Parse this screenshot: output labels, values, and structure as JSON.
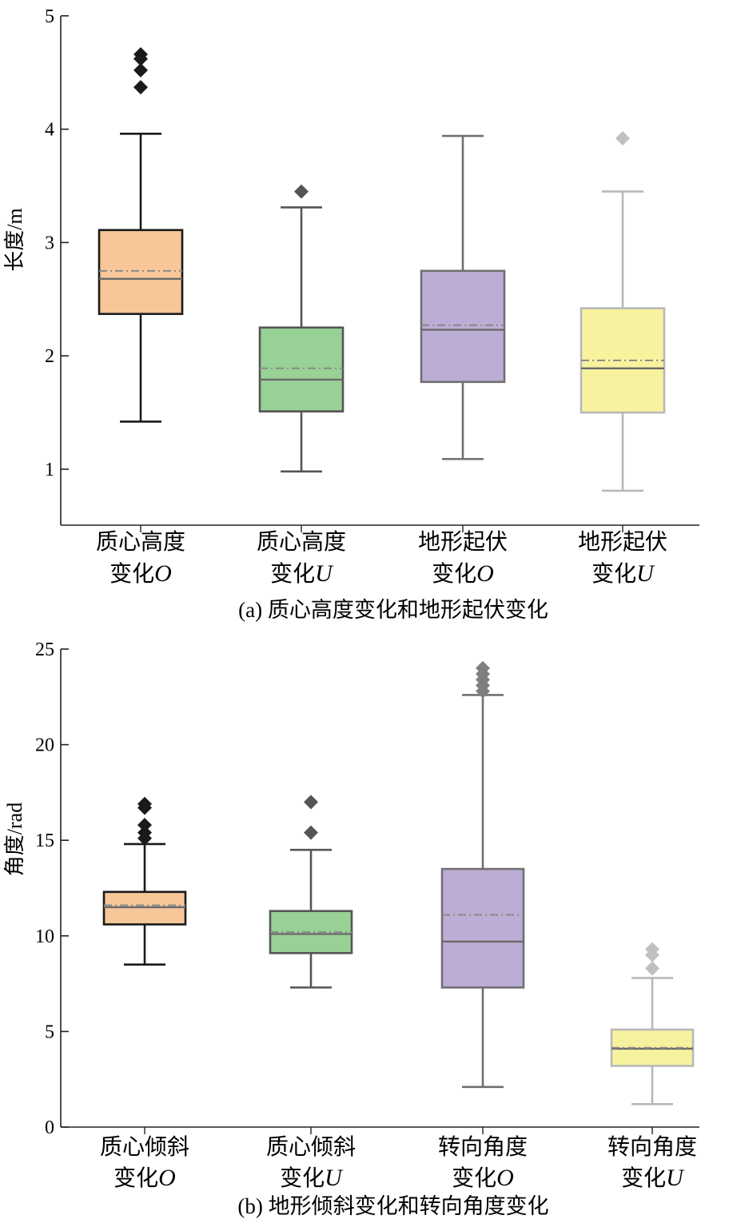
{
  "chart_data": [
    {
      "type": "boxplot",
      "caption_letter": "(a)",
      "caption": "质心高度变化和地形起伏变化",
      "ylabel": "长度",
      "yunit": "/m",
      "ylim": [
        0.45,
        5
      ],
      "yticks": [
        1,
        2,
        3,
        4,
        5
      ],
      "categories": [
        {
          "line1": "质心高度",
          "line2": "变化",
          "var": "O"
        },
        {
          "line1": "质心高度",
          "line2": "变化",
          "var": "U"
        },
        {
          "line1": "地形起伏",
          "line2": "变化",
          "var": "O"
        },
        {
          "line1": "地形起伏",
          "line2": "变化",
          "var": "U"
        }
      ],
      "boxes": [
        {
          "whisker_low": 1.42,
          "q1": 2.37,
          "median": 2.68,
          "mean": 2.75,
          "q3": 3.11,
          "whisker_high": 3.96,
          "outliers": [
            4.37,
            4.52,
            4.62,
            4.66
          ],
          "fill": "#f7c699",
          "stroke": "#1a1a1a"
        },
        {
          "whisker_low": 0.98,
          "q1": 1.51,
          "median": 1.79,
          "mean": 1.89,
          "q3": 2.25,
          "whisker_high": 3.31,
          "outliers": [
            3.45
          ],
          "fill": "#98d196",
          "stroke": "#555555"
        },
        {
          "whisker_low": 1.09,
          "q1": 1.77,
          "median": 2.23,
          "mean": 2.27,
          "q3": 2.75,
          "whisker_high": 3.94,
          "outliers": [],
          "fill": "#bcadd6",
          "stroke": "#707070"
        },
        {
          "whisker_low": 0.81,
          "q1": 1.5,
          "median": 1.89,
          "mean": 1.96,
          "q3": 2.42,
          "whisker_high": 3.45,
          "outliers": [
            3.92
          ],
          "fill": "#f7f29e",
          "stroke": "#b8b8b8"
        }
      ],
      "grid": false,
      "legend": "none"
    },
    {
      "type": "boxplot",
      "caption_letter": "(b)",
      "caption": "地形倾斜变化和转向角度变化",
      "ylabel": "角度",
      "yunit": "/rad",
      "ylim": [
        0,
        25
      ],
      "yticks": [
        0,
        5,
        10,
        15,
        20,
        25
      ],
      "categories": [
        {
          "line1": "质心倾斜",
          "line2": "变化",
          "var": "O"
        },
        {
          "line1": "质心倾斜",
          "line2": "变化",
          "var": "U"
        },
        {
          "line1": "转向角度",
          "line2": "变化",
          "var": "O"
        },
        {
          "line1": "转向角度",
          "line2": "变化",
          "var": "U"
        }
      ],
      "boxes": [
        {
          "whisker_low": 8.5,
          "q1": 10.6,
          "median": 11.5,
          "mean": 11.6,
          "q3": 12.3,
          "whisker_high": 14.8,
          "outliers": [
            15.1,
            15.4,
            15.8,
            16.7,
            16.9
          ],
          "fill": "#f7c699",
          "stroke": "#1a1a1a"
        },
        {
          "whisker_low": 7.3,
          "q1": 9.1,
          "median": 10.1,
          "mean": 10.2,
          "q3": 11.3,
          "whisker_high": 14.5,
          "outliers": [
            15.4,
            17.0
          ],
          "fill": "#98d196",
          "stroke": "#555555"
        },
        {
          "whisker_low": 2.1,
          "q1": 7.3,
          "median": 9.7,
          "mean": 11.1,
          "q3": 13.5,
          "whisker_high": 22.6,
          "outliers": [
            22.8,
            23.1,
            23.4,
            23.7,
            24.0
          ],
          "fill": "#bcadd6",
          "stroke": "#707070"
        },
        {
          "whisker_low": 1.2,
          "q1": 3.2,
          "median": 4.1,
          "mean": 4.15,
          "q3": 5.1,
          "whisker_high": 7.8,
          "outliers": [
            8.3,
            9.0,
            9.3
          ],
          "fill": "#f7f29e",
          "stroke": "#b8b8b8"
        }
      ],
      "grid": false,
      "legend": "none"
    }
  ]
}
